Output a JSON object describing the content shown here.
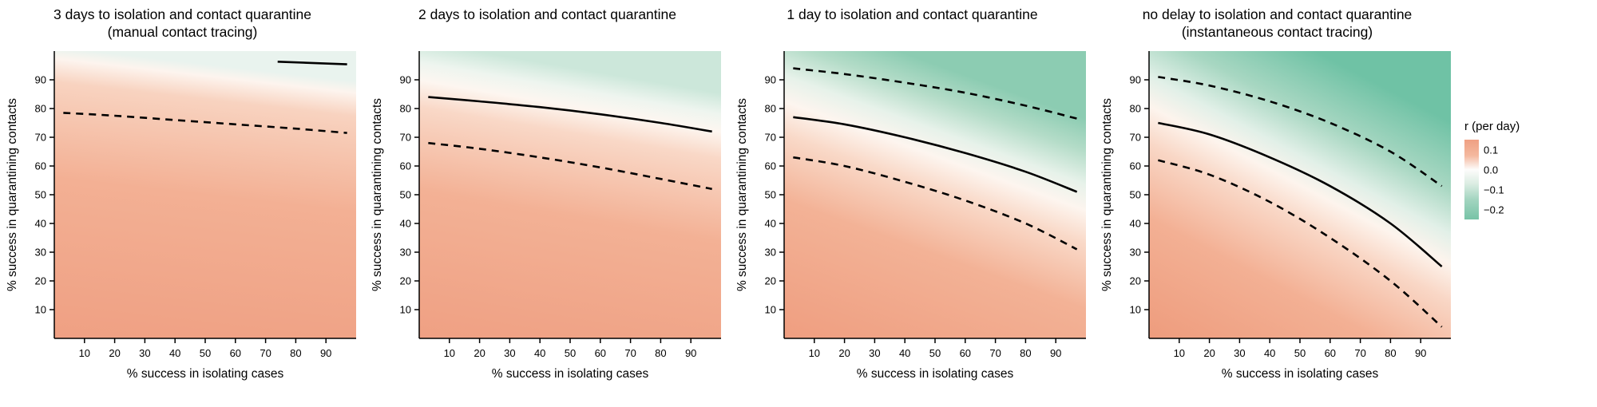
{
  "chart_data": {
    "type": "heatmap",
    "xlabel": "% success in isolating cases",
    "ylabel": "% success in quarantining contacts",
    "xlim": [
      0,
      100
    ],
    "ylim": [
      0,
      100
    ],
    "xticks": [
      10,
      20,
      30,
      40,
      50,
      60,
      70,
      80,
      90
    ],
    "yticks": [
      10,
      20,
      30,
      40,
      50,
      60,
      70,
      80,
      90
    ],
    "grid": false,
    "legend_position": "right",
    "panels": [
      {
        "title": "3 days to isolation and contact quarantine\n(manual contact tracing)",
        "gradient": {
          "x1": 0,
          "y1": 1,
          "x2": 0.12,
          "y2": 0,
          "stops": [
            [
              0.0,
              "#efa083"
            ],
            [
              0.55,
              "#f3b094"
            ],
            [
              0.88,
              "#f8d3c0"
            ],
            [
              0.96,
              "#fdf4ee"
            ],
            [
              1.0,
              "#e9f3ee"
            ]
          ]
        },
        "lines": [
          {
            "name": "r=0 central estimate",
            "style": "solid",
            "points": [
              [
                74,
                96.3
              ],
              [
                97,
                95.4
              ]
            ]
          },
          {
            "name": "lower confidence bound",
            "style": "dashed",
            "points": [
              [
                3,
                78.5
              ],
              [
                20,
                77.5
              ],
              [
                40,
                76.0
              ],
              [
                60,
                74.5
              ],
              [
                80,
                73.0
              ],
              [
                97,
                71.5
              ]
            ]
          }
        ]
      },
      {
        "title": "2 days to isolation and contact quarantine",
        "gradient": {
          "x1": 0,
          "y1": 1,
          "x2": 0.18,
          "y2": 0,
          "stops": [
            [
              0.0,
              "#efa083"
            ],
            [
              0.5,
              "#f3b195"
            ],
            [
              0.78,
              "#f9d8c7"
            ],
            [
              0.87,
              "#fdf6f0"
            ],
            [
              0.93,
              "#eef5ef"
            ],
            [
              1.0,
              "#cce7da"
            ]
          ]
        },
        "lines": [
          {
            "name": "r=0 central estimate",
            "style": "solid",
            "points": [
              [
                3,
                84.0
              ],
              [
                20,
                82.5
              ],
              [
                40,
                80.5
              ],
              [
                60,
                78.0
              ],
              [
                80,
                75.0
              ],
              [
                97,
                72.0
              ]
            ]
          },
          {
            "name": "lower confidence bound",
            "style": "dashed",
            "points": [
              [
                3,
                68.0
              ],
              [
                20,
                66.0
              ],
              [
                40,
                63.0
              ],
              [
                60,
                59.5
              ],
              [
                80,
                55.5
              ],
              [
                97,
                52.0
              ]
            ]
          }
        ]
      },
      {
        "title": "1 day to isolation and contact quarantine",
        "gradient": {
          "x1": 0,
          "y1": 1,
          "x2": 0.38,
          "y2": 0,
          "stops": [
            [
              0.0,
              "#ef9e80"
            ],
            [
              0.42,
              "#f3b296"
            ],
            [
              0.62,
              "#f9d9c8"
            ],
            [
              0.72,
              "#fdf5ef"
            ],
            [
              0.8,
              "#e7f2ea"
            ],
            [
              0.9,
              "#b4dcc8"
            ],
            [
              1.0,
              "#8cccb2"
            ]
          ]
        },
        "lines": [
          {
            "name": "upper confidence bound",
            "style": "dashed",
            "points": [
              [
                3,
                94.0
              ],
              [
                20,
                92.0
              ],
              [
                40,
                89.0
              ],
              [
                60,
                85.5
              ],
              [
                80,
                81.0
              ],
              [
                97,
                76.5
              ]
            ]
          },
          {
            "name": "r=0 central estimate",
            "style": "solid",
            "points": [
              [
                3,
                77.0
              ],
              [
                20,
                74.5
              ],
              [
                40,
                70.0
              ],
              [
                60,
                64.5
              ],
              [
                80,
                58.0
              ],
              [
                97,
                51.0
              ]
            ]
          },
          {
            "name": "lower confidence bound",
            "style": "dashed",
            "points": [
              [
                3,
                63.0
              ],
              [
                20,
                60.0
              ],
              [
                40,
                54.5
              ],
              [
                60,
                48.0
              ],
              [
                80,
                40.0
              ],
              [
                97,
                31.0
              ]
            ]
          }
        ]
      },
      {
        "title": "no delay to isolation and contact quarantine\n(instantaneous contact tracing)",
        "gradient": {
          "x1": 0,
          "y1": 1,
          "x2": 0.55,
          "y2": 0,
          "stops": [
            [
              0.0,
              "#ee9c7d"
            ],
            [
              0.32,
              "#f3b094"
            ],
            [
              0.52,
              "#f9d7c6"
            ],
            [
              0.62,
              "#fdf4ed"
            ],
            [
              0.7,
              "#e2f0e8"
            ],
            [
              0.82,
              "#a8d7c2"
            ],
            [
              1.0,
              "#6fc2a5"
            ]
          ]
        },
        "lines": [
          {
            "name": "upper confidence bound",
            "style": "dashed",
            "points": [
              [
                3,
                91.0
              ],
              [
                20,
                88.0
              ],
              [
                40,
                82.5
              ],
              [
                60,
                75.0
              ],
              [
                80,
                65.0
              ],
              [
                97,
                53.0
              ]
            ]
          },
          {
            "name": "r=0 central estimate",
            "style": "solid",
            "points": [
              [
                3,
                75.0
              ],
              [
                20,
                71.0
              ],
              [
                40,
                63.0
              ],
              [
                60,
                53.0
              ],
              [
                80,
                40.0
              ],
              [
                97,
                25.0
              ]
            ]
          },
          {
            "name": "lower confidence bound",
            "style": "dashed",
            "points": [
              [
                3,
                62.0
              ],
              [
                20,
                57.0
              ],
              [
                40,
                47.5
              ],
              [
                60,
                35.0
              ],
              [
                80,
                20.0
              ],
              [
                97,
                4.0
              ]
            ]
          }
        ]
      }
    ],
    "colorbar": {
      "title": "r (per day)",
      "stops": [
        [
          0.0,
          "#efa083"
        ],
        [
          0.2,
          "#f4b89e"
        ],
        [
          0.375,
          "#fdfcfb"
        ],
        [
          0.55,
          "#dcede3"
        ],
        [
          0.75,
          "#a3d5c0"
        ],
        [
          1.0,
          "#77c3a7"
        ]
      ],
      "ticks": [
        {
          "label": "0.1",
          "pos": 0.125
        },
        {
          "label": "0.0",
          "pos": 0.375
        },
        {
          "label": "−0.1",
          "pos": 0.625
        },
        {
          "label": "−0.2",
          "pos": 0.875
        }
      ]
    }
  }
}
